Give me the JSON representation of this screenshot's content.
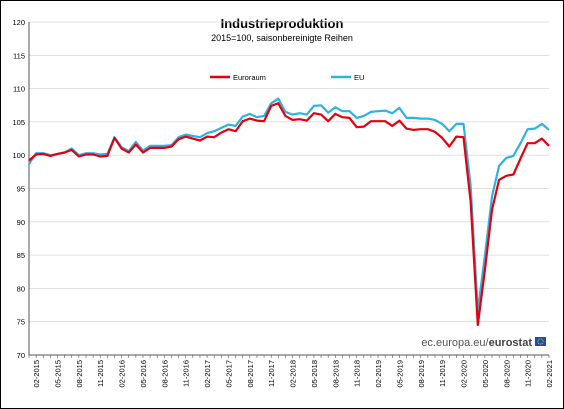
{
  "chart_data": {
    "type": "line",
    "title": "Industrieproduktion",
    "subtitle": "2015=100, saisonbereinigte Reihen",
    "ylim": [
      70,
      120
    ],
    "yticks": [
      70,
      75,
      80,
      85,
      90,
      95,
      100,
      105,
      110,
      115,
      120
    ],
    "grid": true,
    "legend": "top",
    "xtick_labels": [
      "02-2015",
      "05-2015",
      "08-2015",
      "11-2015",
      "02-2016",
      "05-2016",
      "08-2016",
      "11-2016",
      "02-2017",
      "05-2017",
      "08-2017",
      "11-2017",
      "02-2018",
      "05-2018",
      "08-2018",
      "11-2018",
      "02-2019",
      "05-2019",
      "08-2019",
      "11-2019",
      "02-2020",
      "05-2020",
      "08-2020",
      "11-2020",
      "02-2021"
    ],
    "x": [
      "01-2015",
      "02-2015",
      "03-2015",
      "04-2015",
      "05-2015",
      "06-2015",
      "07-2015",
      "08-2015",
      "09-2015",
      "10-2015",
      "11-2015",
      "12-2015",
      "01-2016",
      "02-2016",
      "03-2016",
      "04-2016",
      "05-2016",
      "06-2016",
      "07-2016",
      "08-2016",
      "09-2016",
      "10-2016",
      "11-2016",
      "12-2016",
      "01-2017",
      "02-2017",
      "03-2017",
      "04-2017",
      "05-2017",
      "06-2017",
      "07-2017",
      "08-2017",
      "09-2017",
      "10-2017",
      "11-2017",
      "12-2017",
      "01-2018",
      "02-2018",
      "03-2018",
      "04-2018",
      "05-2018",
      "06-2018",
      "07-2018",
      "08-2018",
      "09-2018",
      "10-2018",
      "11-2018",
      "12-2018",
      "01-2019",
      "02-2019",
      "03-2019",
      "04-2019",
      "05-2019",
      "06-2019",
      "07-2019",
      "08-2019",
      "09-2019",
      "10-2019",
      "11-2019",
      "12-2019",
      "01-2020",
      "02-2020",
      "03-2020",
      "04-2020",
      "05-2020",
      "06-2020",
      "07-2020",
      "08-2020",
      "09-2020",
      "10-2020",
      "11-2020",
      "12-2020",
      "01-2021",
      "02-2021"
    ],
    "series": [
      {
        "name": "Euroraum",
        "color": "#e3000f",
        "values": [
          99.2,
          100.1,
          100.2,
          99.9,
          100.2,
          100.4,
          100.8,
          99.8,
          100.1,
          100.1,
          99.8,
          99.9,
          102.6,
          101.0,
          100.4,
          101.6,
          100.4,
          101.1,
          101.1,
          101.1,
          101.3,
          102.4,
          102.8,
          102.5,
          102.2,
          102.8,
          102.7,
          103.4,
          103.9,
          103.6,
          105.1,
          105.5,
          105.2,
          105.1,
          107.4,
          107.8,
          105.9,
          105.3,
          105.4,
          105.2,
          106.3,
          106.1,
          105.1,
          106.2,
          105.7,
          105.6,
          104.2,
          104.3,
          105.1,
          105.1,
          105.1,
          104.4,
          105.2,
          104.0,
          103.8,
          103.9,
          103.9,
          103.5,
          102.6,
          101.3,
          102.8,
          102.7,
          93.1,
          74.5,
          82.8,
          91.8,
          96.3,
          96.9,
          97.1,
          99.5,
          101.8,
          101.8,
          102.5,
          101.4
        ]
      },
      {
        "name": "EU",
        "color": "#2fb2e0",
        "values": [
          98.7,
          100.3,
          100.3,
          100.0,
          100.2,
          100.4,
          101.0,
          100.0,
          100.3,
          100.3,
          100.1,
          100.2,
          102.7,
          101.2,
          100.6,
          102.0,
          100.7,
          101.4,
          101.4,
          101.4,
          101.5,
          102.7,
          103.1,
          102.9,
          102.7,
          103.3,
          103.6,
          104.1,
          104.6,
          104.4,
          105.8,
          106.2,
          105.7,
          105.9,
          107.8,
          108.5,
          106.5,
          106.1,
          106.3,
          106.1,
          107.4,
          107.5,
          106.4,
          107.2,
          106.6,
          106.6,
          105.6,
          105.9,
          106.5,
          106.6,
          106.7,
          106.3,
          107.1,
          105.6,
          105.6,
          105.5,
          105.5,
          105.3,
          104.7,
          103.6,
          104.7,
          104.7,
          95.5,
          76.6,
          84.9,
          93.8,
          98.4,
          99.6,
          99.9,
          101.8,
          103.9,
          104.0,
          104.7,
          103.8
        ]
      }
    ]
  },
  "brand": {
    "site": "ec.europa.eu/",
    "name": "eurostat"
  }
}
